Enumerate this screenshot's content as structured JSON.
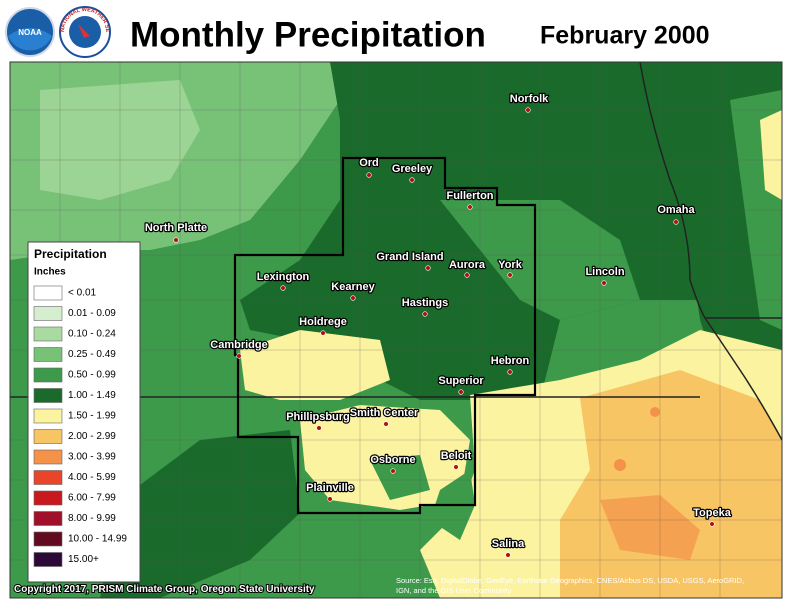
{
  "header": {
    "title": "Monthly Precipitation",
    "date": "February 2000",
    "logo_noaa": "NOAA",
    "logo_nws": "NATIONAL WEATHER SERVICE"
  },
  "legend": {
    "title": "Precipitation",
    "unit": "Inches",
    "items": [
      {
        "label": "< 0.01",
        "color": "#ffffff"
      },
      {
        "label": "0.01 - 0.09",
        "color": "#d6eed0"
      },
      {
        "label": "0.10 - 0.24",
        "color": "#a9dba1"
      },
      {
        "label": "0.25 - 0.49",
        "color": "#78c278"
      },
      {
        "label": "0.50 - 0.99",
        "color": "#3c9a4a"
      },
      {
        "label": "1.00 - 1.49",
        "color": "#1a6b2b"
      },
      {
        "label": "1.50 - 1.99",
        "color": "#fcf3a0"
      },
      {
        "label": "2.00 - 2.99",
        "color": "#f8c564"
      },
      {
        "label": "3.00 - 3.99",
        "color": "#f4924a"
      },
      {
        "label": "4.00 - 5.99",
        "color": "#e8452a"
      },
      {
        "label": "6.00 - 7.99",
        "color": "#c8191e"
      },
      {
        "label": "8.00 - 9.99",
        "color": "#a0102a"
      },
      {
        "label": "10.00 - 14.99",
        "color": "#620a20"
      },
      {
        "label": "15.00+",
        "color": "#2e0838"
      }
    ]
  },
  "cities": [
    "Norfolk",
    "Ord",
    "Greeley",
    "Fullerton",
    "Omaha",
    "North Platte",
    "Grand Island",
    "Aurora",
    "York",
    "Lincoln",
    "Lexington",
    "Kearney",
    "Hastings",
    "Holdrege",
    "Cambridge",
    "Hebron",
    "Superior",
    "Phillipsburg",
    "Smith Center",
    "Beloit",
    "Osborne",
    "Plainville",
    "Topeka",
    "Salina"
  ],
  "footer": {
    "copyright": "Copyright 2017, PRISM Climate Group, Oregon State University",
    "source": [
      "Source: Esri, DigitalGlobe, GeoEye, Earthstar Geographics, CNES/Airbus DS, USDA, USGS, AeroGRID,",
      "IGN, and the GIS User Community"
    ]
  }
}
